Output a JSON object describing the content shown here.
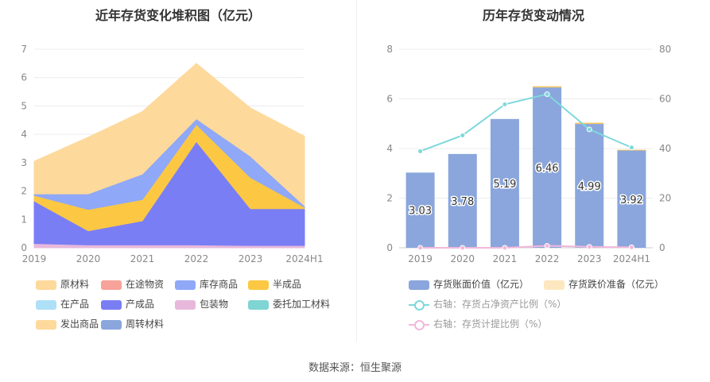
{
  "source": "数据来源：恒生聚源",
  "chart_data": [
    {
      "type": "area",
      "title": "近年存货变化堆积图（亿元）",
      "categories": [
        "2019",
        "2020",
        "2021",
        "2022",
        "2023",
        "2024H1"
      ],
      "ylim": [
        0,
        7
      ],
      "yticks": [
        0,
        1,
        2,
        3,
        4,
        5,
        6,
        7
      ],
      "stack_order_bottom_to_top": [
        "包装物",
        "产成品",
        "半成品",
        "库存商品",
        "原材料"
      ],
      "series": [
        {
          "name": "原材料",
          "color": "#fdd99b",
          "values": [
            1.15,
            2.0,
            2.2,
            1.95,
            1.7,
            2.45
          ]
        },
        {
          "name": "在途物资",
          "color": "#f7a29a",
          "values": [
            0,
            0,
            0,
            0,
            0,
            0
          ]
        },
        {
          "name": "库存商品",
          "color": "#8fa8f7",
          "values": [
            0.05,
            0.55,
            0.9,
            0.2,
            0.75,
            0.05
          ]
        },
        {
          "name": "半成品",
          "color": "#fcc844",
          "values": [
            0.2,
            0.75,
            0.75,
            0.6,
            1.1,
            0.05
          ]
        },
        {
          "name": "在产品",
          "color": "#aee0f7",
          "values": [
            0,
            0,
            0,
            0,
            0,
            0
          ]
        },
        {
          "name": "产成品",
          "color": "#7a7ef5",
          "values": [
            1.5,
            0.5,
            0.85,
            3.65,
            1.3,
            1.3
          ]
        },
        {
          "name": "包装物",
          "color": "#e8b8dc",
          "values": [
            0.15,
            0.1,
            0.1,
            0.1,
            0.08,
            0.08
          ]
        },
        {
          "name": "委托加工材料",
          "color": "#7fd4d4",
          "values": [
            0,
            0,
            0,
            0,
            0,
            0
          ]
        },
        {
          "name": "发出商品",
          "color": "#fdd99b",
          "values": [
            0,
            0,
            0,
            0,
            0,
            0
          ]
        },
        {
          "name": "周转材料",
          "color": "#8aa6dc",
          "values": [
            0,
            0,
            0,
            0,
            0,
            0
          ]
        }
      ]
    },
    {
      "type": "bar",
      "title": "历年存货变动情况",
      "categories": [
        "2019",
        "2020",
        "2021",
        "2022",
        "2023",
        "2024H1"
      ],
      "ylim": [
        0,
        8
      ],
      "yticks": [
        0,
        2,
        4,
        6,
        8
      ],
      "y2lim": [
        0,
        80
      ],
      "y2ticks": [
        0,
        20,
        40,
        60,
        80
      ],
      "series": [
        {
          "name": "存货账面价值（亿元）",
          "kind": "bar",
          "color": "#8aa6dc",
          "values": [
            3.03,
            3.78,
            5.19,
            6.46,
            4.99,
            3.92
          ]
        },
        {
          "name": "存货跌价准备（亿元）",
          "kind": "bar",
          "color": "#fde7bf",
          "values": [
            0,
            0,
            0,
            0.05,
            0.05,
            0.03
          ]
        },
        {
          "name": "右轴：存货占净资产比例（%）",
          "kind": "line",
          "axis": "right",
          "color": "#7fd8dc",
          "values": [
            38.9,
            45.3,
            57.8,
            61.9,
            47.7,
            40.4
          ]
        },
        {
          "name": "右轴：存货计提比例（%）",
          "kind": "line",
          "axis": "right",
          "color": "#f2b8da",
          "values": [
            0,
            0,
            0,
            0.8,
            0.4,
            0.2
          ]
        }
      ]
    }
  ]
}
